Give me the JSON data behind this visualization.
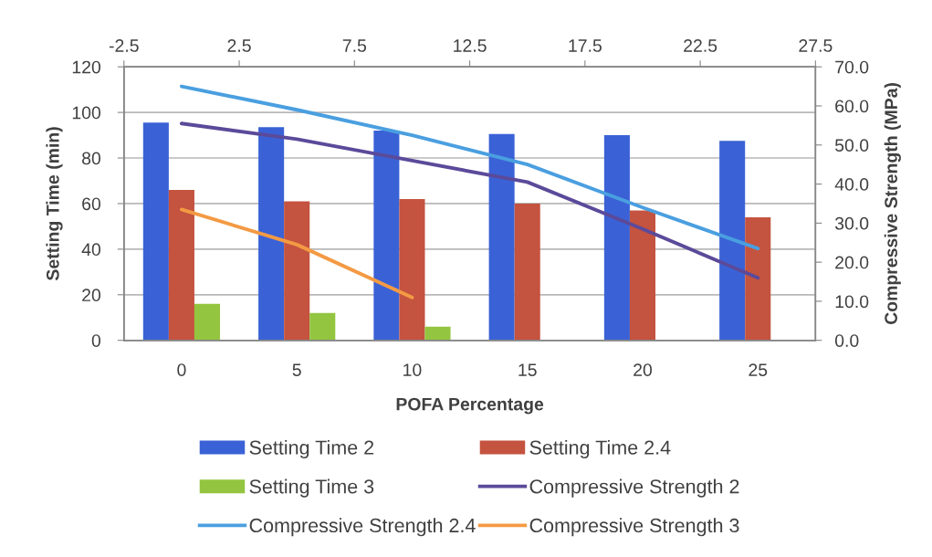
{
  "chart_data": {
    "type": "bar",
    "categories": [
      "0",
      "5",
      "10",
      "15",
      "20",
      "25"
    ],
    "xlabel": "POFA Percentage",
    "ylabel": "Setting Time (min)",
    "y2label": "Compressive Strength (MPa)",
    "ylim": [
      0,
      120
    ],
    "yticks": [
      0,
      20,
      40,
      60,
      80,
      100,
      120
    ],
    "y2lim": [
      0,
      70
    ],
    "y2ticks": [
      {
        "value": 0,
        "label": "0.0"
      },
      {
        "value": 10,
        "label": "10.0"
      },
      {
        "value": 20,
        "label": "20.0"
      },
      {
        "value": 30,
        "label": "30.0"
      },
      {
        "value": 40,
        "label": "40.0"
      },
      {
        "value": 50,
        "label": "50.0"
      },
      {
        "value": 60,
        "label": "60.0"
      },
      {
        "value": 70,
        "label": "70.0"
      }
    ],
    "x2lim": [
      -2.5,
      27.5
    ],
    "x2ticks": [
      -2.5,
      2.5,
      7.5,
      12.5,
      17.5,
      22.5,
      27.5
    ],
    "series": [
      {
        "name": "Setting Time 2",
        "color": "#3a62d6",
        "values": [
          95.5,
          93.5,
          92,
          90.5,
          90,
          87.5
        ]
      },
      {
        "name": "Setting Time 2.4",
        "color": "#c4533f",
        "values": [
          66,
          61,
          62,
          60,
          57,
          54
        ]
      },
      {
        "name": "Setting Time 3",
        "color": "#93c540",
        "values": [
          16,
          12,
          6,
          null,
          null,
          null
        ]
      },
      {
        "name": "Compressive Strength 2",
        "type": "line",
        "axis": "y2",
        "color": "#5b4a9a",
        "values": [
          55.5,
          51.5,
          46,
          40.5,
          28.5,
          16
        ]
      },
      {
        "name": "Compressive Strength 2.4",
        "type": "line",
        "axis": "y2",
        "color": "#4a9fe0",
        "values": [
          65,
          59,
          52.5,
          45,
          34,
          23.5
        ]
      },
      {
        "name": "Compressive Strength 3",
        "type": "line",
        "axis": "y2",
        "color": "#f39a44",
        "values": [
          33.5,
          24.5,
          11,
          null,
          null,
          null
        ]
      }
    ],
    "grid": "y",
    "legend": "bottom",
    "line_style": "solid"
  }
}
